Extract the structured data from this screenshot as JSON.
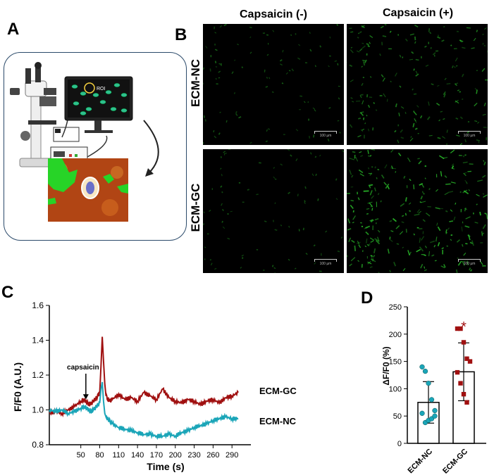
{
  "panels": {
    "a": {
      "letter": "A",
      "roi_label": "ROI"
    },
    "b": {
      "letter": "B",
      "col_labels": [
        "Capsaicin (-)",
        "Capsaicin (+)"
      ],
      "row_labels": [
        "ECM-NC",
        "ECM-GC"
      ],
      "scale_bar_label": "100 µm"
    },
    "c": {
      "letter": "C"
    },
    "d": {
      "letter": "D"
    }
  },
  "colors": {
    "ecm_gc": "#a01010",
    "ecm_nc": "#1aa5b8",
    "fluorescence": "#2fd22f",
    "significance": "#a01010"
  },
  "chart_data": [
    {
      "type": "line",
      "xlabel": "Time (s)",
      "ylabel": "F/F0 (A.U.)",
      "ylim": [
        0.8,
        1.6
      ],
      "xlim": [
        0,
        320
      ],
      "yticks": [
        0.8,
        1.0,
        1.2,
        1.4,
        1.6
      ],
      "ytick_labels": [
        "0.8",
        "1.0",
        "1.2",
        "1.4",
        "1.6"
      ],
      "xticks": [
        50,
        80,
        110,
        140,
        170,
        200,
        230,
        260,
        290
      ],
      "xtick_labels": [
        "50",
        "80",
        "110",
        "140",
        "170",
        "200",
        "230",
        "260",
        "290"
      ],
      "annotation": {
        "text": "capsaicin",
        "x": 58
      },
      "series": [
        {
          "name": "ECM-GC",
          "x": [
            0,
            10,
            20,
            30,
            40,
            50,
            55,
            60,
            65,
            70,
            75,
            80,
            82,
            84,
            86,
            88,
            90,
            95,
            100,
            110,
            120,
            130,
            140,
            150,
            160,
            170,
            180,
            190,
            200,
            210,
            220,
            230,
            240,
            250,
            260,
            270,
            280,
            290,
            300
          ],
          "y": [
            0.98,
            0.99,
            0.98,
            1.0,
            1.02,
            1.05,
            1.06,
            1.04,
            1.03,
            1.05,
            1.07,
            1.1,
            1.25,
            1.42,
            1.28,
            1.15,
            1.08,
            1.05,
            1.06,
            1.09,
            1.06,
            1.07,
            1.05,
            1.1,
            1.08,
            1.06,
            1.12,
            1.07,
            1.05,
            1.04,
            1.06,
            1.05,
            1.03,
            1.05,
            1.06,
            1.04,
            1.07,
            1.08,
            1.1
          ]
        },
        {
          "name": "ECM-NC",
          "x": [
            0,
            10,
            20,
            30,
            40,
            50,
            55,
            60,
            65,
            70,
            75,
            80,
            82,
            84,
            86,
            88,
            90,
            95,
            100,
            110,
            120,
            130,
            140,
            150,
            160,
            170,
            180,
            190,
            200,
            210,
            220,
            230,
            240,
            250,
            260,
            270,
            280,
            290,
            300
          ],
          "y": [
            1.0,
            0.99,
            1.0,
            0.98,
            0.99,
            1.01,
            1.02,
            1.01,
            0.99,
            1.0,
            1.02,
            1.04,
            1.12,
            1.16,
            1.05,
            0.98,
            0.96,
            0.94,
            0.92,
            0.9,
            0.89,
            0.88,
            0.87,
            0.86,
            0.86,
            0.85,
            0.85,
            0.86,
            0.85,
            0.87,
            0.88,
            0.9,
            0.91,
            0.92,
            0.94,
            0.95,
            0.96,
            0.95,
            0.95
          ]
        }
      ]
    },
    {
      "type": "bar",
      "ylabel": "ΔF/F0 (%)",
      "ylim": [
        0,
        250
      ],
      "yticks": [
        0,
        50,
        100,
        150,
        200,
        250
      ],
      "ytick_labels": [
        "0",
        "50",
        "100",
        "150",
        "200",
        "250"
      ],
      "categories": [
        "ECM-NC",
        "ECM-GC"
      ],
      "values": [
        75,
        131
      ],
      "error": [
        38,
        53
      ],
      "points": [
        [
          140,
          132,
          110,
          80,
          60,
          55,
          38,
          42,
          45,
          50
        ],
        [
          210,
          210,
          185,
          155,
          150,
          130,
          110,
          90,
          75
        ]
      ],
      "annotation": "*"
    }
  ]
}
